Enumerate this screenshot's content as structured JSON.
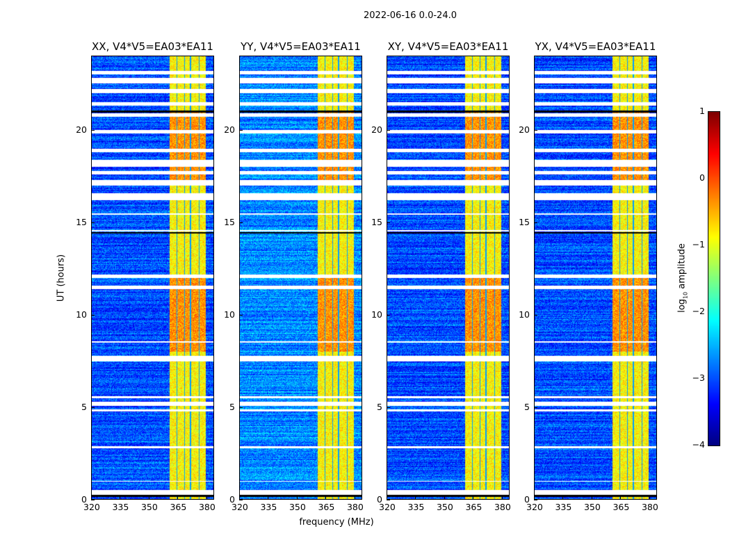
{
  "chart_data": {
    "type": "heatmap",
    "title": "2022-06-16 0.0-24.0",
    "xlabel": "frequency (MHz)",
    "ylabel": "UT (hours)",
    "xlim": [
      320,
      384
    ],
    "ylim": [
      0,
      24
    ],
    "xticks": [
      "320",
      "335",
      "350",
      "365",
      "380"
    ],
    "xtick_values": [
      320,
      335,
      350,
      365,
      380
    ],
    "yticks": [
      "0",
      "5",
      "10",
      "15",
      "20"
    ],
    "ytick_values": [
      0,
      5,
      10,
      15,
      20
    ],
    "panels": [
      {
        "title": "XX, V4*V5=EA03*EA11"
      },
      {
        "title": "YY, V4*V5=EA03*EA11"
      },
      {
        "title": "XY, V4*V5=EA03*EA11"
      },
      {
        "title": "YX, V4*V5=EA03*EA11"
      }
    ],
    "colormap": "jet",
    "colorbar": {
      "label_prefix": "log",
      "label_sub": "10",
      "label_suffix": " amplitude",
      "range": [
        -4,
        1
      ],
      "ticks": [
        "1",
        "0",
        "−1",
        "−2",
        "−3",
        "−4"
      ],
      "tick_values": [
        1,
        0,
        -1,
        -2,
        -3,
        -4
      ]
    },
    "background_level": -3.0,
    "rfi_band_mhz": [
      360.5,
      379.5
    ],
    "rfi_band_level": -1.0,
    "flagged_ut_hours": [
      [
        0.3,
        0.55
      ],
      [
        1.0,
        1.05
      ],
      [
        2.8,
        2.9
      ],
      [
        4.8,
        4.9
      ],
      [
        5.1,
        5.3
      ],
      [
        5.5,
        5.6
      ],
      [
        7.5,
        7.8
      ],
      [
        8.5,
        8.6
      ],
      [
        11.4,
        11.6
      ],
      [
        12.0,
        12.2
      ],
      [
        14.5,
        14.6
      ],
      [
        15.4,
        15.5
      ],
      [
        16.2,
        16.6
      ],
      [
        17.0,
        17.3
      ],
      [
        17.6,
        17.8
      ],
      [
        18.0,
        18.4
      ],
      [
        18.8,
        19.0
      ],
      [
        19.8,
        20.0
      ],
      [
        20.7,
        20.9
      ],
      [
        21.3,
        21.5
      ],
      [
        22.0,
        22.2
      ],
      [
        22.5,
        22.8
      ],
      [
        23.0,
        23.2
      ]
    ]
  }
}
